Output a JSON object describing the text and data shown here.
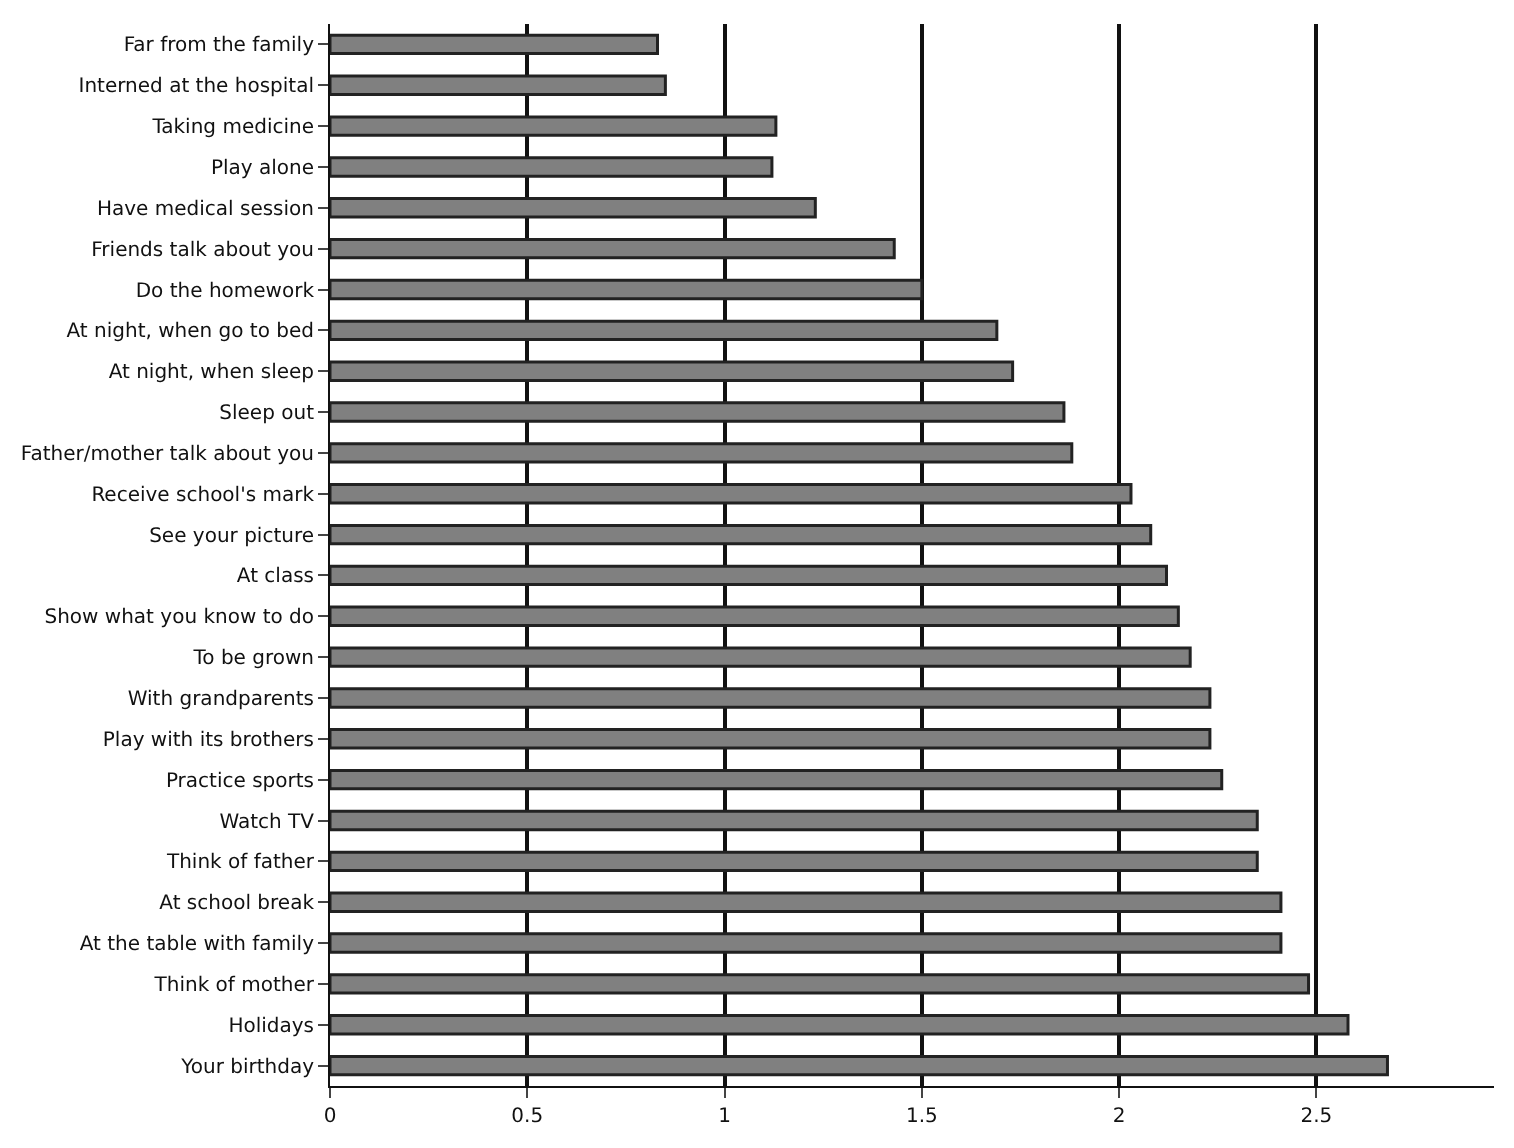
{
  "chart_data": {
    "type": "bar",
    "orientation": "horizontal",
    "categories": [
      "Far from the family",
      "Interned at the hospital",
      "Taking medicine",
      "Play alone",
      "Have medical session",
      "Friends talk about you",
      "Do the homework",
      "At night, when go to bed",
      "At night, when sleep",
      "Sleep out",
      "Father/mother talk about you",
      "Receive school's mark",
      "See your picture",
      "At class",
      "Show what you know to do",
      "To be grown",
      "With grandparents",
      "Play with its brothers",
      "Practice sports",
      "Watch TV",
      "Think of father",
      "At school break",
      "At the table with family",
      "Think of mother",
      "Holidays",
      "Your birthday"
    ],
    "values": [
      0.83,
      0.85,
      1.13,
      1.12,
      1.23,
      1.43,
      1.5,
      1.69,
      1.73,
      1.86,
      1.88,
      2.03,
      2.08,
      2.12,
      2.15,
      2.18,
      2.23,
      2.23,
      2.26,
      2.35,
      2.35,
      2.41,
      2.41,
      2.48,
      2.58,
      2.68
    ],
    "color": "#808080",
    "xlim": [
      0,
      2.95
    ],
    "xticks": [
      0,
      0.5,
      1,
      1.5,
      2,
      2.5
    ],
    "grid": "x"
  }
}
